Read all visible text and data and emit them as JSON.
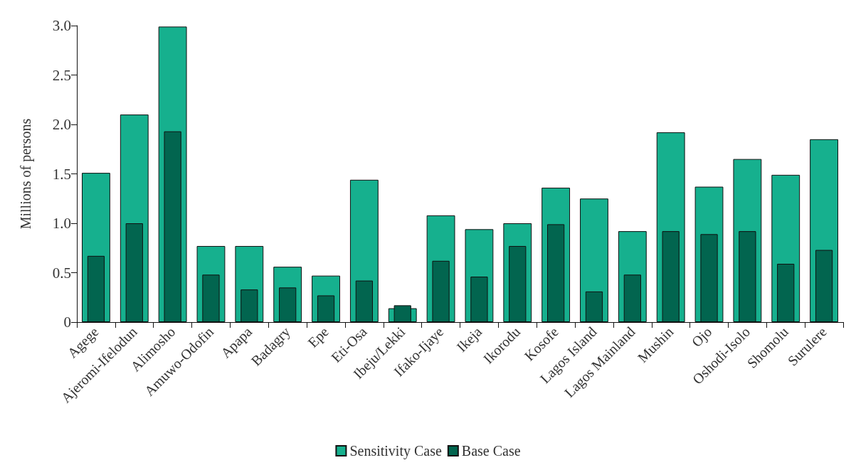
{
  "chart_data": {
    "type": "bar",
    "ylabel": "Millions of persons",
    "categories": [
      "Agege",
      "Ajeromi-Ifelodun",
      "Alimosho",
      "Amuwo-Odofin",
      "Apapa",
      "Badagry",
      "Epe",
      "Eti-Osa",
      "Ibeju/Lekki",
      "Ifako-Ijaye",
      "Ikeja",
      "Ikorodu",
      "Kosofe",
      "Lagos Island",
      "Lagos Mainland",
      "Mushin",
      "Ojo",
      "Oshodi-Isolo",
      "Shomolu",
      "Surulere"
    ],
    "series": [
      {
        "name": "Sensitivity Case",
        "color": "#16b08e",
        "values": [
          1.51,
          2.1,
          2.99,
          0.77,
          0.77,
          0.56,
          0.47,
          1.44,
          0.14,
          1.08,
          0.94,
          1.0,
          1.36,
          1.25,
          0.92,
          1.92,
          1.37,
          1.65,
          1.49,
          1.85
        ]
      },
      {
        "name": "Base Case",
        "color": "#02654f",
        "values": [
          0.67,
          1.0,
          1.93,
          0.48,
          0.33,
          0.35,
          0.27,
          0.42,
          0.17,
          0.62,
          0.46,
          0.77,
          0.99,
          0.31,
          0.48,
          0.92,
          0.89,
          0.92,
          0.59,
          0.73
        ]
      }
    ],
    "ylim": [
      0,
      3
    ],
    "yticks": [
      0,
      0.5,
      {
        "value": 1,
        "label": "1.0"
      },
      1.5,
      {
        "value": 2,
        "label": "2.0"
      },
      2.5,
      {
        "value": 3,
        "label": "3.0"
      }
    ],
    "grid": false,
    "legend": "bottom"
  }
}
